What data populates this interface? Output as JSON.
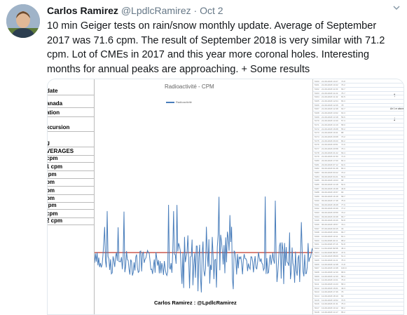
{
  "tweet": {
    "name": "Carlos Ramirez",
    "handle": "@LpdlcRamirez",
    "separator": "·",
    "date": "Oct 2",
    "text": "10 min Geiger tests on rain/snow monthly update. Average of September 2017 was 71.6 cpm. The result of September 2018 is very similar with 71.2 cpm. Lot of CMEs in 2017 and this year more coronal holes. Interesting months for annual peaks are approaching. + Some results"
  },
  "media": {
    "left_labels": [
      "date",
      "anada",
      "ation",
      "xcursion",
      "g",
      "VERAGES",
      "cpm",
      "1 cpm",
      ":pm",
      "pm",
      "pm",
      "pm",
      ":pm",
      "cpm",
      "2 cpm"
    ],
    "chart_title": "Radioactivité - CPM",
    "legend": "Radioactivité",
    "footer": "Carlos Ramirez : @LpdlcRamirez",
    "table_rows": [
      [
        "5160",
        "21-09-2018 10:27",
        "73.8"
      ],
      [
        "5161",
        "21-09-2018 10:42",
        "76.2"
      ],
      [
        "5162",
        "21-09-2018 11:03",
        "69.7"
      ],
      [
        "5163",
        "21-09-2018 11:22",
        "75.7"
      ],
      [
        "5164",
        "21-09-2018 11:42",
        "81.5"
      ],
      [
        "5165",
        "21-09-2018 12:04",
        "83.3"
      ],
      [
        "5166",
        "21-09-2018 12:26",
        "78"
      ],
      [
        "5167",
        "21-09-2018 12:48",
        "64.7"
      ],
      [
        "5168",
        "21-09-2018 13:02",
        "63.3"
      ],
      [
        "5169",
        "21-09-2018 13:18",
        "59.6"
      ],
      [
        "5170",
        "21-09-2018 13:40",
        "57.3"
      ],
      [
        "5171",
        "21-09-2018 14:19",
        "58.0"
      ],
      [
        "5172",
        "21-09-2018 16:08",
        "55.2"
      ],
      [
        "5173",
        "21-09-2018 19:41",
        "88"
      ],
      [
        "5174",
        "21-09-2018 20:08",
        "70.2"
      ],
      [
        "5175",
        "21-09-2018 20:20",
        "80.2"
      ],
      [
        "5176",
        "21-09-2018 20:51",
        "71.9"
      ],
      [
        "5177",
        "21-09-2018 20:58",
        "76.1"
      ],
      [
        "5178",
        "21-09-2018 21:22",
        "69.4"
      ],
      [
        "5179",
        "21-09-2018 21:50",
        "71.0"
      ],
      [
        "5180",
        "22-09-2018 17:09",
        "82.4"
      ],
      [
        "5181",
        "23-09-2018 07:12",
        "64.6"
      ],
      [
        "5182",
        "03-09-2018 01:28",
        "83.4"
      ],
      [
        "5183",
        "03-09-2018 03:22",
        "70.2"
      ],
      [
        "5184",
        "03-09-2018 04:21",
        "56.0"
      ],
      [
        "5185",
        "03-09-2018 10:03",
        "68"
      ],
      [
        "5186",
        "03-09-2018 14:18",
        "54.6"
      ],
      [
        "5187",
        "03-09-2018 16:38",
        "46.8"
      ],
      [
        "5188",
        "03-09-2018 16:57",
        "66"
      ],
      [
        "5189",
        "03-09-2018 16:18",
        "58.7"
      ],
      [
        "5190",
        "03-09-2018 17:48",
        "75.9"
      ],
      [
        "5191",
        "03-09-2018 18:48",
        "77.9"
      ],
      [
        "5192",
        "03-09-2018 20:49",
        "77.2"
      ],
      [
        "5193",
        "03-09-2018 20:59",
        "73.2"
      ],
      [
        "5194",
        "03-09-2018 20:48",
        "66.7"
      ],
      [
        "5195",
        "03-09-2018 20:46",
        "53.8"
      ],
      [
        "5196",
        "06-09-2018 18:57",
        "79.1"
      ],
      [
        "5197",
        "07-09-2018 00:15",
        "33"
      ],
      [
        "5198",
        "10-09-2018 19:01",
        "66.7"
      ],
      [
        "5199",
        "10-09-2018 19:11",
        "81.1"
      ],
      [
        "5200",
        "11-09-2018 22:11",
        "68.2"
      ],
      [
        "5201",
        "11-09-2018 27:16",
        "51.8"
      ],
      [
        "5202",
        "11-09-2018 09:58",
        "45.4"
      ],
      [
        "5203",
        "11-09-2018 09:07",
        "47.6"
      ],
      [
        "5204",
        "12-09-2018 08:09",
        "61.4"
      ],
      [
        "5205",
        "12-09-2018 11:21",
        "75.3"
      ],
      [
        "5206",
        "12-09-2018 12:48",
        "71.8"
      ],
      [
        "5207",
        "12-09-2018 13:48",
        "100.9"
      ],
      [
        "5208",
        "12-09-2018 12:40",
        "68.9"
      ],
      [
        "5209",
        "12-09-2018 12:40",
        "58.4"
      ],
      [
        "5210",
        "12-09-2018 13:21",
        "76.0"
      ],
      [
        "5211",
        "12-09-2018 14:23",
        "58.4"
      ],
      [
        "5212",
        "12-09-2018 16:01",
        "49.3"
      ],
      [
        "5213",
        "12-09-2018 17:46",
        "76"
      ],
      [
        "5214",
        "12-09-2018 18:10",
        "60"
      ],
      [
        "5215",
        "12-09-2018 19:52",
        "70.5"
      ],
      [
        "5216",
        "12-09-2018 21:31",
        "75.3"
      ],
      [
        "5217",
        "13-09-2018 10:12",
        "68.2"
      ],
      [
        "5218",
        "14-09-2018 14:17",
        "65.2"
      ]
    ],
    "side_note": "Air 1 m above"
  }
}
